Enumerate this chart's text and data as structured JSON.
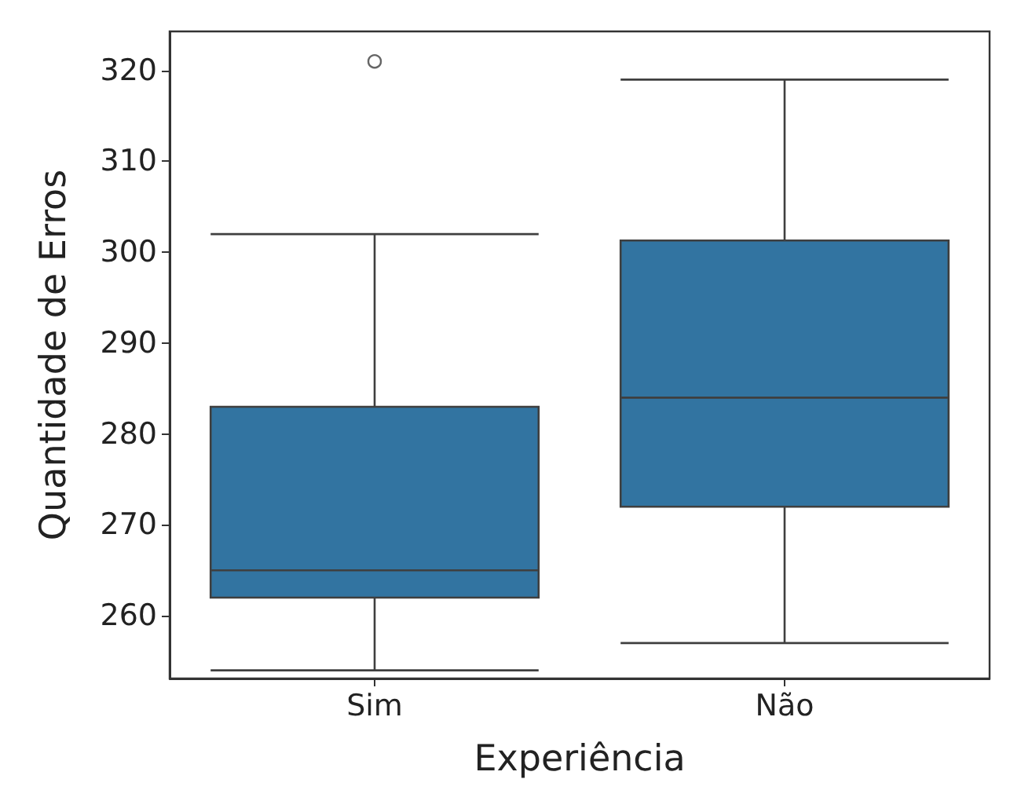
{
  "chart_data": {
    "type": "box",
    "xlabel": "Experiência",
    "ylabel": "Quantidade de Erros",
    "categories": [
      "Sim",
      "Não"
    ],
    "color": "#3274a1",
    "boxes": [
      {
        "low": 254,
        "q1": 262,
        "median": 265,
        "q3": 283,
        "high": 302,
        "outliers": [
          321
        ]
      },
      {
        "low": 257,
        "q1": 272,
        "median": 284,
        "q3": 301.3,
        "high": 319
      }
    ],
    "ylim": [
      253.1,
      324.3
    ],
    "yticks": [
      260,
      270,
      280,
      290,
      300,
      310,
      320
    ],
    "grid": false,
    "marker": "circle"
  }
}
